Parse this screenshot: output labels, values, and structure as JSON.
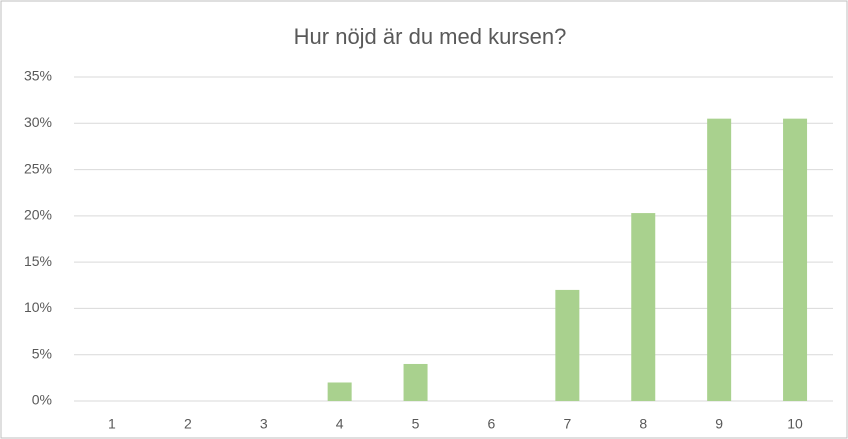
{
  "chart_data": {
    "type": "bar",
    "title": "Hur nöjd är du med kursen?",
    "categories": [
      "1",
      "2",
      "3",
      "4",
      "5",
      "6",
      "7",
      "8",
      "9",
      "10"
    ],
    "values": [
      0,
      0,
      0,
      2,
      4,
      0,
      12,
      20.3,
      30.5,
      30.5
    ],
    "color": "#a9d18e",
    "ylim": [
      0,
      35
    ],
    "yticks": [
      {
        "value": 0,
        "label": "0%"
      },
      {
        "value": 5,
        "label": "5%"
      },
      {
        "value": 10,
        "label": "10%"
      },
      {
        "value": 15,
        "label": "15%"
      },
      {
        "value": 20,
        "label": "20%"
      },
      {
        "value": 25,
        "label": "25%"
      },
      {
        "value": 30,
        "label": "30%"
      },
      {
        "value": 35,
        "label": "35%"
      }
    ],
    "grid": true
  }
}
